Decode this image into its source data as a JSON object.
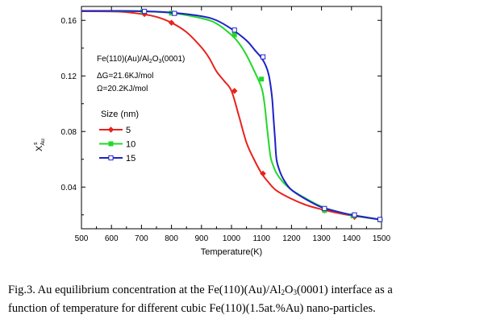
{
  "chart_data": {
    "type": "line",
    "xlabel": "Temperature(K)",
    "ylabel": "X",
    "ylabel_super": "s",
    "ylabel_sub": "Au",
    "xlim": [
      500,
      1500
    ],
    "ylim": [
      0.01,
      0.17
    ],
    "x_ticks": [
      500,
      600,
      700,
      800,
      900,
      1000,
      1100,
      1200,
      1300,
      1400,
      1500
    ],
    "y_ticks": [
      0.04,
      0.08,
      0.12,
      0.16
    ],
    "y_tick_labels": [
      "0.04",
      "0.08",
      "0.12",
      "0.16"
    ],
    "grid": false,
    "annotations": [
      {
        "id": "system",
        "text_parts": [
          "Fe(110)(Au)/Al",
          "2",
          "O",
          "3",
          "(0001)"
        ]
      },
      {
        "id": "deltaG",
        "text": "ΔG=21.6KJ/mol"
      },
      {
        "id": "omega",
        "text": "Ω=20.2KJ/mol"
      }
    ],
    "legend_title": "Size (nm)",
    "legend_placement": "left",
    "series": [
      {
        "name": "5",
        "color": "#e8221c",
        "marker": "diamond-filled",
        "x": [
          500,
          600,
          650,
          700,
          750,
          800,
          850,
          900,
          925,
          950,
          975,
          1000,
          1025,
          1050,
          1075,
          1100,
          1125,
          1150,
          1200,
          1250,
          1300,
          1350,
          1400,
          1450,
          1500
        ],
        "values": [
          0.1665,
          0.1664,
          0.1659,
          0.1646,
          0.1625,
          0.1583,
          0.1515,
          0.1405,
          0.1331,
          0.1233,
          0.1165,
          0.1092,
          0.091,
          0.072,
          0.06,
          0.05,
          0.043,
          0.0375,
          0.0315,
          0.027,
          0.024,
          0.0215,
          0.0195,
          0.018,
          0.0165
        ],
        "markers_x": [
          710,
          800,
          1010,
          1105,
          1310,
          1410,
          1495
        ],
        "markers_y": [
          0.1645,
          0.1583,
          0.1092,
          0.0497,
          0.0232,
          0.0185,
          0.0165
        ]
      },
      {
        "name": "10",
        "color": "#22d82a",
        "marker": "square-filled",
        "x": [
          500,
          600,
          700,
          800,
          900,
          950,
          1000,
          1025,
          1050,
          1075,
          1100,
          1110,
          1120,
          1130,
          1140,
          1150,
          1170,
          1200,
          1250,
          1300,
          1350,
          1400,
          1450,
          1500
        ],
        "values": [
          0.1668,
          0.1667,
          0.1664,
          0.1653,
          0.1615,
          0.1577,
          0.1495,
          0.1435,
          0.135,
          0.124,
          0.1117,
          0.1,
          0.08,
          0.062,
          0.055,
          0.05,
          0.044,
          0.038,
          0.0315,
          0.026,
          0.0225,
          0.0198,
          0.018,
          0.0165
        ],
        "markers_x": [
          705,
          800,
          1010,
          1100,
          1310,
          1405,
          1495
        ],
        "markers_y": [
          0.1665,
          0.1652,
          0.1495,
          0.1177,
          0.0232,
          0.0193,
          0.0165
        ]
      },
      {
        "name": "15",
        "color": "#1e22c8",
        "marker": "square-open",
        "x": [
          500,
          600,
          700,
          800,
          900,
          950,
          1000,
          1050,
          1080,
          1100,
          1115,
          1125,
          1135,
          1140,
          1145,
          1150,
          1160,
          1175,
          1200,
          1250,
          1300,
          1350,
          1400,
          1450,
          1500
        ],
        "values": [
          0.1668,
          0.1668,
          0.1666,
          0.1656,
          0.163,
          0.16,
          0.1538,
          0.1455,
          0.138,
          0.133,
          0.127,
          0.12,
          0.105,
          0.09,
          0.075,
          0.06,
          0.052,
          0.045,
          0.038,
          0.031,
          0.0255,
          0.0225,
          0.02,
          0.0182,
          0.0165
        ],
        "markers_x": [
          710,
          810,
          1010,
          1105,
          1310,
          1410,
          1495
        ],
        "markers_y": [
          0.1665,
          0.165,
          0.153,
          0.1337,
          0.0246,
          0.02,
          0.0167
        ]
      }
    ]
  },
  "caption": {
    "line1_before_sub1": "Fig.3. Au equilibrium concentration at the Fe(110)(Au)/Al",
    "line1_sub1": "2",
    "line1_mid": "O",
    "line1_sub2": "3",
    "line1_after": "(0001) interface as a",
    "line2": "function of temperature for different cubic Fe(110)(1.5at.%Au) nano-particles."
  }
}
